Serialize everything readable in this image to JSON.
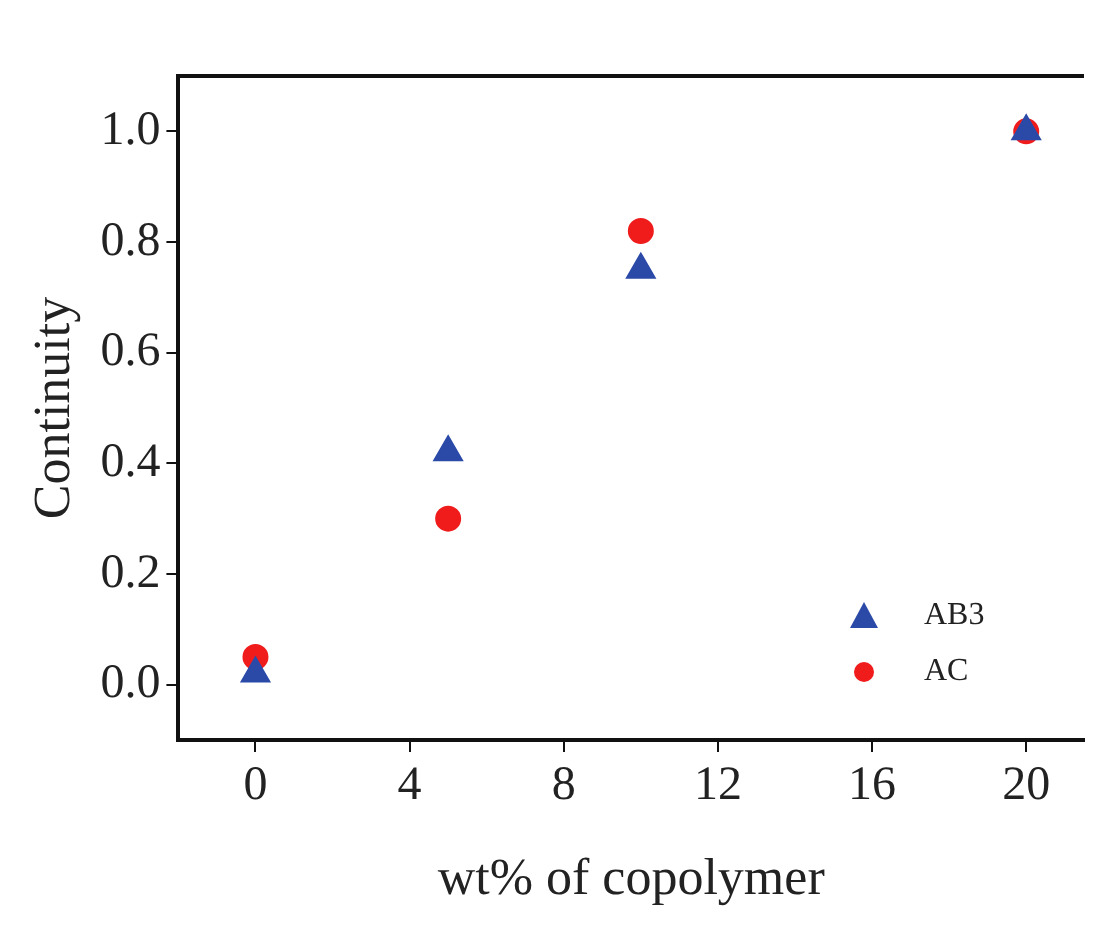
{
  "chart_data": {
    "type": "scatter",
    "xlabel": "wt% of copolymer",
    "ylabel": "Continuity",
    "x": [
      0,
      5,
      10,
      20
    ],
    "series": [
      {
        "name": "AB3",
        "color": "#2b4aa8",
        "marker": "triangle",
        "values": [
          0.02,
          0.42,
          0.75,
          1.0
        ]
      },
      {
        "name": "AC",
        "color": "#f01c1c",
        "marker": "circle",
        "values": [
          0.05,
          0.3,
          0.82,
          1.0
        ]
      }
    ],
    "xlim": [
      -2,
      21.5
    ],
    "xticks": [
      0,
      4,
      8,
      12,
      16,
      20
    ],
    "ylim": [
      -0.1,
      1.1
    ],
    "yticks": [
      {
        "value": 0,
        "label": "0.0"
      },
      0.2,
      0.4,
      0.6,
      0.8,
      {
        "value": 1,
        "label": "1.0"
      }
    ],
    "grid": false,
    "legend": "bottom right"
  }
}
